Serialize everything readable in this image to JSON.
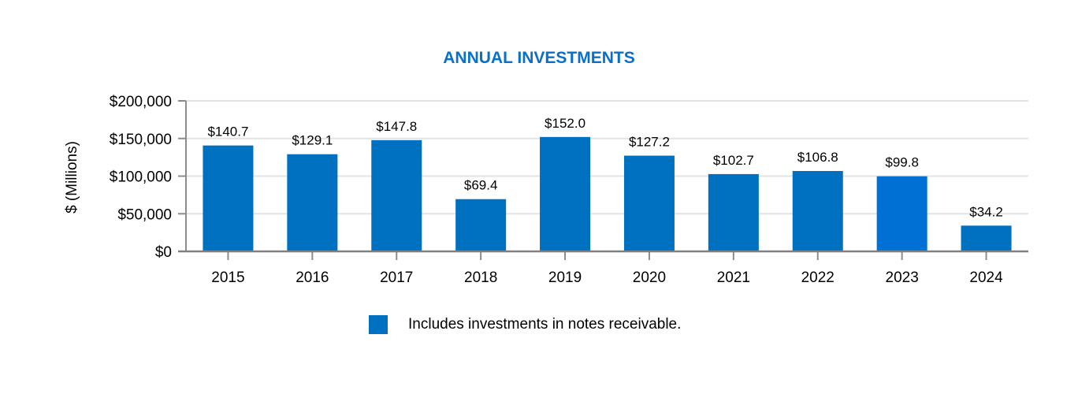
{
  "chart_data": {
    "type": "bar",
    "title": "ANNUAL INVESTMENTS",
    "xlabel": "",
    "ylabel": "$ (Millions)",
    "categories": [
      "2015",
      "2016",
      "2017",
      "2018",
      "2019",
      "2020",
      "2021",
      "2022",
      "2023",
      "2024"
    ],
    "values": [
      140700,
      129100,
      147800,
      69400,
      152000,
      127200,
      102700,
      106800,
      99800,
      34200
    ],
    "data_labels": [
      "$140.7",
      "$129.1",
      "$147.8",
      "$69.4",
      "$152.0",
      "$127.2",
      "$102.7",
      "$106.8",
      "$99.8",
      "$34.2"
    ],
    "ylim": [
      0,
      200000
    ],
    "yticks": [
      0,
      50000,
      100000,
      150000,
      200000
    ],
    "ytick_labels": [
      "$0",
      "$50,000",
      "$100,000",
      "$150,000",
      "$200,000"
    ],
    "grid": true,
    "legend": {
      "placement": "bottom",
      "entries": [
        {
          "label": "Includes investments in notes receivable.",
          "color": "#0070c0"
        }
      ]
    },
    "colors": {
      "bar": "#0070c0",
      "highlight_bar": "#0070d4",
      "title": "#0a6fc9"
    },
    "highlight_index": 8
  }
}
